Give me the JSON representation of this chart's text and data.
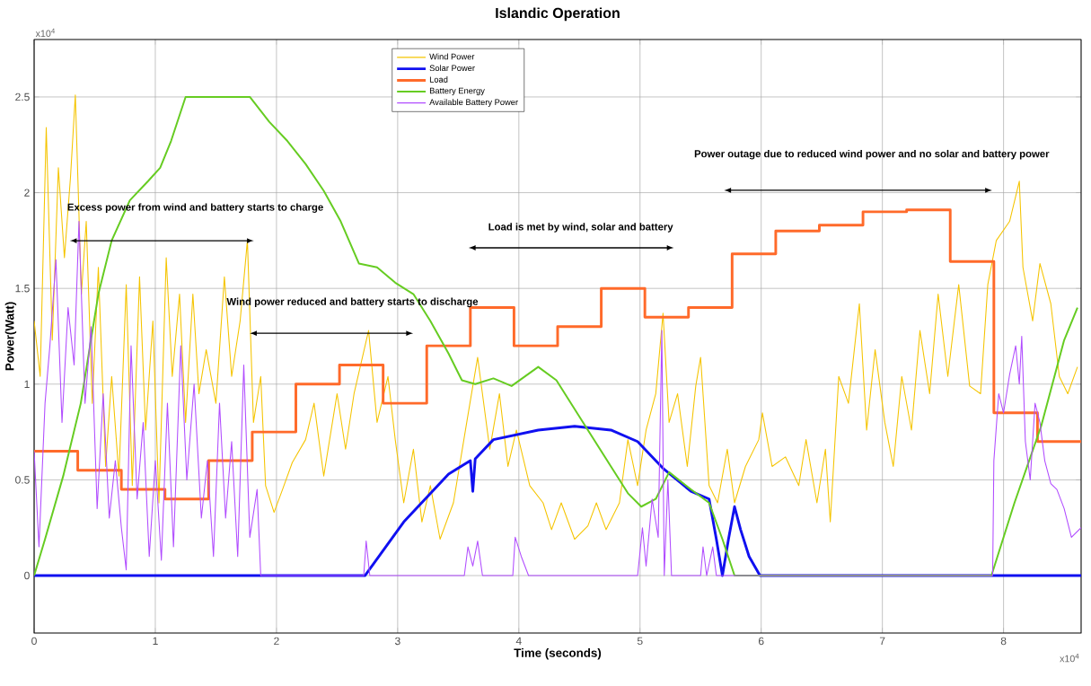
{
  "chart_data": {
    "type": "line",
    "title": "Islandic Operation",
    "xlabel": "Time (seconds)",
    "ylabel": "Power(Watt)",
    "xlim": [
      0,
      8.64
    ],
    "ylim": [
      -0.3,
      2.8
    ],
    "xticks": [
      0,
      1,
      2,
      3,
      4,
      5,
      6,
      7,
      8
    ],
    "yticks": [
      0,
      0.5,
      1,
      1.5,
      2,
      2.5
    ],
    "grid": true,
    "legend": "top",
    "marker": "none",
    "annotations": [
      "x10$^{4}$",
      "x10$^{4}$",
      "Excess power from wind and battery starts to charge",
      "Wind power reduced and battery starts to discharge",
      "Load is met by wind, solar and battery",
      "Power outage due to reduced wind power and no solar and battery  power"
    ],
    "series": [
      {
        "name": "Wind Power",
        "color": "#f5c400",
        "x": [
          0,
          0.05,
          0.1,
          0.15,
          0.2,
          0.25,
          0.3,
          0.34,
          0.39,
          0.43,
          0.48,
          0.53,
          0.59,
          0.64,
          0.7,
          0.76,
          0.81,
          0.87,
          0.92,
          0.98,
          1.03,
          1.09,
          1.14,
          1.2,
          1.25,
          1.31,
          1.36,
          1.42,
          1.5,
          1.57,
          1.63,
          1.7,
          1.76,
          1.81,
          1.87,
          1.91,
          1.98,
          2.05,
          2.13,
          2.24,
          2.31,
          2.39,
          2.5,
          2.57,
          2.64,
          2.76,
          2.83,
          2.92,
          2.98,
          3.05,
          3.13,
          3.2,
          3.27,
          3.35,
          3.46,
          3.57,
          3.66,
          3.76,
          3.84,
          3.91,
          3.98,
          4.09,
          4.2,
          4.27,
          4.35,
          4.46,
          4.57,
          4.64,
          4.72,
          4.83,
          4.9,
          4.98,
          5.05,
          5.13,
          5.19,
          5.24,
          5.31,
          5.39,
          5.46,
          5.5,
          5.57,
          5.64,
          5.72,
          5.78,
          5.87,
          5.98,
          6.01,
          6.09,
          6.2,
          6.31,
          6.37,
          6.46,
          6.53,
          6.57,
          6.64,
          6.72,
          6.81,
          6.87,
          6.94,
          7.02,
          7.09,
          7.16,
          7.24,
          7.31,
          7.39,
          7.46,
          7.54,
          7.63,
          7.72,
          7.81,
          7.87,
          7.94,
          8.05,
          8.13,
          8.16,
          8.24,
          8.3,
          8.39,
          8.46,
          8.53,
          8.61
        ],
        "values": [
          1.33,
          1.04,
          2.34,
          1.23,
          2.13,
          1.66,
          2.08,
          2.51,
          1.47,
          1.85,
          0.9,
          1.61,
          0.57,
          1.04,
          0.52,
          1.52,
          0.47,
          1.56,
          0.76,
          1.33,
          0.38,
          1.66,
          1.04,
          1.47,
          0.8,
          1.47,
          0.95,
          1.18,
          0.9,
          1.56,
          1.04,
          1.33,
          1.75,
          0.8,
          1.04,
          0.47,
          0.33,
          0.45,
          0.59,
          0.71,
          0.9,
          0.52,
          0.95,
          0.66,
          0.95,
          1.28,
          0.8,
          1.04,
          0.71,
          0.38,
          0.66,
          0.28,
          0.47,
          0.19,
          0.38,
          0.8,
          1.14,
          0.66,
          0.95,
          0.57,
          0.76,
          0.47,
          0.38,
          0.24,
          0.38,
          0.19,
          0.26,
          0.38,
          0.24,
          0.38,
          0.71,
          0.47,
          0.76,
          0.95,
          1.37,
          0.8,
          0.95,
          0.57,
          0.99,
          1.14,
          0.47,
          0.38,
          0.66,
          0.38,
          0.57,
          0.71,
          0.85,
          0.57,
          0.62,
          0.47,
          0.71,
          0.38,
          0.66,
          0.28,
          1.04,
          0.9,
          1.42,
          0.76,
          1.18,
          0.8,
          0.57,
          1.04,
          0.76,
          1.28,
          0.95,
          1.47,
          1.04,
          1.52,
          0.99,
          0.95,
          1.52,
          1.75,
          1.85,
          2.06,
          1.61,
          1.33,
          1.63,
          1.42,
          1.04,
          0.95,
          1.09
        ]
      },
      {
        "name": "Solar Power",
        "color": "#1010f0",
        "x": [
          0,
          2.73,
          3.05,
          3.42,
          3.6,
          3.62,
          3.64,
          3.79,
          4.16,
          4.46,
          4.76,
          4.98,
          5.19,
          5.42,
          5.57,
          5.63,
          5.68,
          5.73,
          5.78,
          5.83,
          5.9,
          5.99,
          8.64
        ],
        "values": [
          0,
          0,
          0.28,
          0.53,
          0.6,
          0.44,
          0.61,
          0.71,
          0.76,
          0.78,
          0.76,
          0.7,
          0.56,
          0.44,
          0.4,
          0.19,
          0,
          0.19,
          0.36,
          0.24,
          0.1,
          0,
          0
        ]
      },
      {
        "name": "Load",
        "type": "step",
        "color": "#ff6a2a",
        "x": [
          0,
          0.36,
          0.72,
          1.08,
          1.44,
          1.8,
          2.16,
          2.52,
          2.88,
          3.24,
          3.6,
          3.96,
          4.32,
          4.68,
          5.04,
          5.4,
          5.76,
          6.12,
          6.48,
          6.84,
          7.2,
          7.56,
          7.92,
          8.28,
          8.64
        ],
        "values": [
          0.65,
          0.55,
          0.45,
          0.4,
          0.6,
          0.75,
          1,
          1.1,
          0.9,
          1.2,
          1.4,
          1.2,
          1.3,
          1.5,
          1.35,
          1.4,
          1.68,
          1.8,
          1.83,
          1.9,
          1.91,
          1.64,
          0.85,
          0.7,
          0.7
        ]
      },
      {
        "name": "Battery Energy",
        "color": "#66cc22",
        "x": [
          0,
          0.09,
          0.24,
          0.385,
          0.53,
          0.64,
          0.79,
          0.94,
          1.04,
          1.13,
          1.25,
          1.78,
          1.94,
          2.09,
          2.24,
          2.39,
          2.53,
          2.68,
          2.83,
          2.98,
          3.13,
          3.27,
          3.42,
          3.53,
          3.64,
          3.79,
          3.94,
          4.16,
          4.31,
          4.53,
          4.76,
          4.9,
          5.01,
          5.13,
          5.24,
          5.42,
          5.57,
          5.68,
          5.78,
          7.9,
          8.09,
          8.31,
          8.5,
          8.61
        ],
        "values": [
          0,
          0.19,
          0.52,
          0.9,
          1.47,
          1.75,
          1.96,
          2.06,
          2.13,
          2.27,
          2.5,
          2.5,
          2.37,
          2.27,
          2.15,
          2.01,
          1.85,
          1.63,
          1.61,
          1.53,
          1.47,
          1.33,
          1.16,
          1.02,
          1,
          1.03,
          0.99,
          1.09,
          1.02,
          0.8,
          0.57,
          0.43,
          0.36,
          0.4,
          0.54,
          0.45,
          0.38,
          0.19,
          0,
          0,
          0.38,
          0.78,
          1.23,
          1.4
        ]
      },
      {
        "name": "Available Battery Power",
        "color": "#b14dff",
        "x": [
          0,
          0.04,
          0.09,
          0.13,
          0.18,
          0.23,
          0.28,
          0.33,
          0.37,
          0.42,
          0.47,
          0.52,
          0.57,
          0.62,
          0.67,
          0.72,
          0.76,
          0.8,
          0.85,
          0.9,
          0.95,
          1,
          1.05,
          1.1,
          1.15,
          1.21,
          1.26,
          1.32,
          1.38,
          1.43,
          1.48,
          1.53,
          1.58,
          1.63,
          1.68,
          1.73,
          1.78,
          1.84,
          1.87,
          2.72,
          2.74,
          2.77,
          3.55,
          3.58,
          3.62,
          3.66,
          3.7,
          3.95,
          3.97,
          4.02,
          4.08,
          4.98,
          5.02,
          5.05,
          5.1,
          5.15,
          5.18,
          5.2,
          5.23,
          5.26,
          5.5,
          5.52,
          5.55,
          5.6,
          5.63,
          7.91,
          7.92,
          7.96,
          8,
          8.05,
          8.1,
          8.13,
          8.15,
          8.18,
          8.22,
          8.26,
          8.3,
          8.34,
          8.39,
          8.44,
          8.5,
          8.56,
          8.64
        ],
        "values": [
          0.65,
          0.15,
          0.9,
          1.2,
          1.65,
          0.8,
          1.4,
          1.1,
          1.85,
          0.9,
          1.3,
          0.35,
          0.95,
          0.3,
          0.6,
          0.25,
          0.03,
          1.2,
          0.4,
          0.8,
          0.1,
          0.6,
          0.08,
          0.9,
          0.15,
          1.2,
          0.5,
          1,
          0.3,
          0.6,
          0.1,
          0.9,
          0.3,
          0.7,
          0.1,
          1.1,
          0.2,
          0.45,
          0,
          0,
          0.18,
          0,
          0,
          0.15,
          0.05,
          0.18,
          0,
          0,
          0.2,
          0.1,
          0,
          0,
          0.25,
          0.05,
          0.4,
          0.2,
          1.28,
          0,
          0.5,
          0,
          0,
          0.15,
          0,
          0.15,
          0,
          0,
          0.6,
          0.95,
          0.85,
          1.05,
          1.2,
          1,
          1.25,
          0.7,
          0.5,
          0.9,
          0.8,
          0.6,
          0.48,
          0.45,
          0.35,
          0.2,
          0.25
        ]
      }
    ]
  }
}
